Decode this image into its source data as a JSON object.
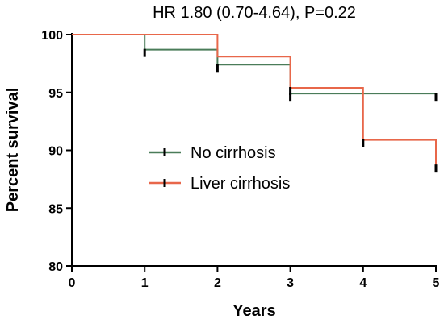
{
  "chart_data": {
    "type": "line",
    "subtype": "kaplan-meier-step",
    "title": "HR 1.80 (0.70-4.64), P=0.22",
    "xlabel": "Years",
    "ylabel": "Percent survival",
    "xlim": [
      0,
      5
    ],
    "ylim": [
      80,
      100
    ],
    "xticks": [
      "0",
      "1",
      "2",
      "3",
      "4",
      "5"
    ],
    "yticks": [
      "80",
      "85",
      "90",
      "95",
      "100"
    ],
    "grid": false,
    "legend_position": "center",
    "series": [
      {
        "name": "No cirrhosis",
        "color": "#4a7c59",
        "x": [
          0,
          1,
          2,
          3,
          5
        ],
        "y": [
          100,
          98.7,
          97.4,
          94.9,
          94.9
        ],
        "censor_x": [
          1,
          2,
          3,
          5
        ],
        "censor_y": [
          98.7,
          97.4,
          94.9,
          94.9
        ]
      },
      {
        "name": "Liver cirrhosis",
        "color": "#e8674a",
        "x": [
          0,
          2,
          3,
          4,
          5
        ],
        "y": [
          100,
          98.1,
          95.4,
          90.9,
          88.7
        ],
        "censor_x": [
          3,
          4,
          5
        ],
        "censor_y": [
          95.4,
          90.9,
          88.7
        ]
      }
    ]
  }
}
